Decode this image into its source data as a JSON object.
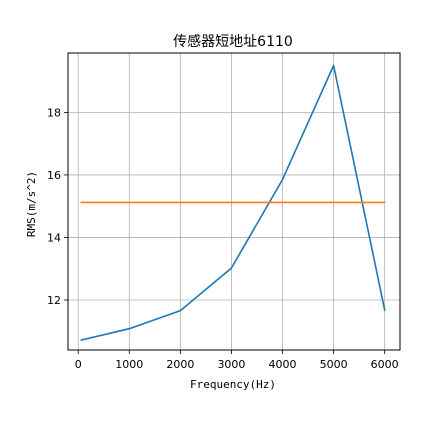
{
  "chart_data": {
    "type": "line",
    "title": "传感器短地址6110",
    "xlabel": "Frequency(Hz)",
    "ylabel": "RMS(m/s^2)",
    "xlim": [
      -200,
      6300
    ],
    "ylim": [
      10.4,
      19.9
    ],
    "xticks": [
      0,
      1000,
      2000,
      3000,
      4000,
      5000,
      6000
    ],
    "yticks": [
      12,
      14,
      16,
      18
    ],
    "grid": true,
    "series": [
      {
        "color": "#1f77b4",
        "x": [
          63,
          1000,
          2000,
          3000,
          4000,
          5000,
          6000
        ],
        "y": [
          10.72,
          11.08,
          11.66,
          13.02,
          15.85,
          19.5,
          11.68
        ]
      },
      {
        "color": "#ff7f0e",
        "x": [
          63,
          6000
        ],
        "y": [
          15.12,
          15.12
        ]
      }
    ]
  }
}
